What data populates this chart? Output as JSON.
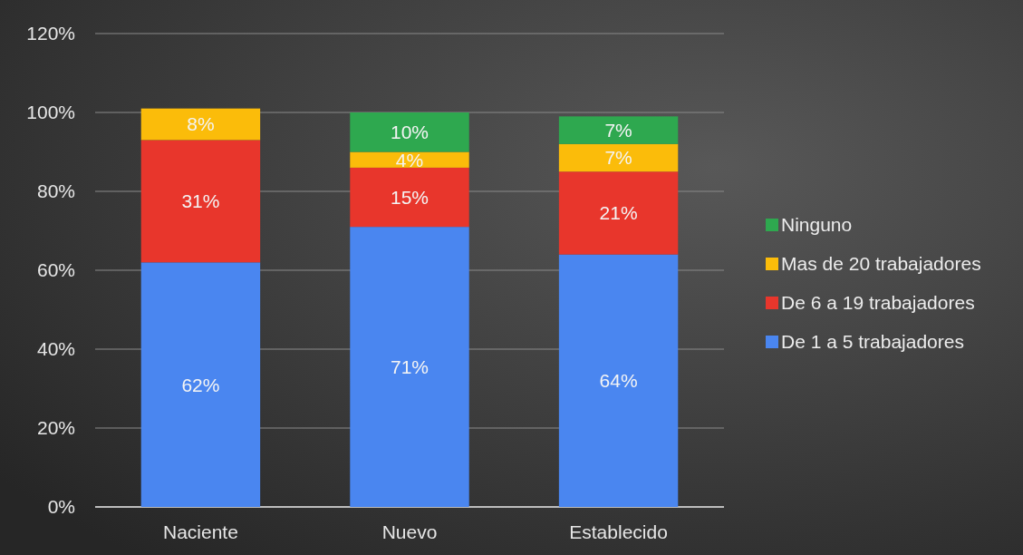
{
  "chart_data": {
    "type": "bar",
    "stacked": true,
    "categories": [
      "Naciente",
      "Nuevo",
      "Establecido"
    ],
    "series": [
      {
        "name": "De 1 a 5 trabajadores",
        "color": "#4a86f0",
        "values": [
          62,
          71,
          64
        ],
        "value_labels": [
          "62%",
          "71%",
          "64%"
        ]
      },
      {
        "name": "De 6 a 19 trabajadores",
        "color": "#e8362c",
        "values": [
          31,
          15,
          21
        ],
        "value_labels": [
          "31%",
          "15%",
          "21%"
        ]
      },
      {
        "name": "Mas de 20 trabajadores",
        "color": "#fbbc0a",
        "values": [
          8,
          4,
          7
        ],
        "value_labels": [
          "8%",
          "4%",
          "7%"
        ]
      },
      {
        "name": "Ninguno",
        "color": "#2ea84f",
        "values": [
          null,
          10,
          7
        ],
        "value_labels": [
          null,
          "10%",
          "7%"
        ]
      }
    ],
    "ylim": [
      0,
      120
    ],
    "yticks": [
      {
        "value": 0,
        "label": "0%"
      },
      {
        "value": 20,
        "label": "20%"
      },
      {
        "value": 40,
        "label": "40%"
      },
      {
        "value": 60,
        "label": "60%"
      },
      {
        "value": 80,
        "label": "80%"
      },
      {
        "value": 100,
        "label": "100%"
      },
      {
        "value": 120,
        "label": "120%"
      }
    ],
    "grid": true,
    "legend": "right"
  }
}
